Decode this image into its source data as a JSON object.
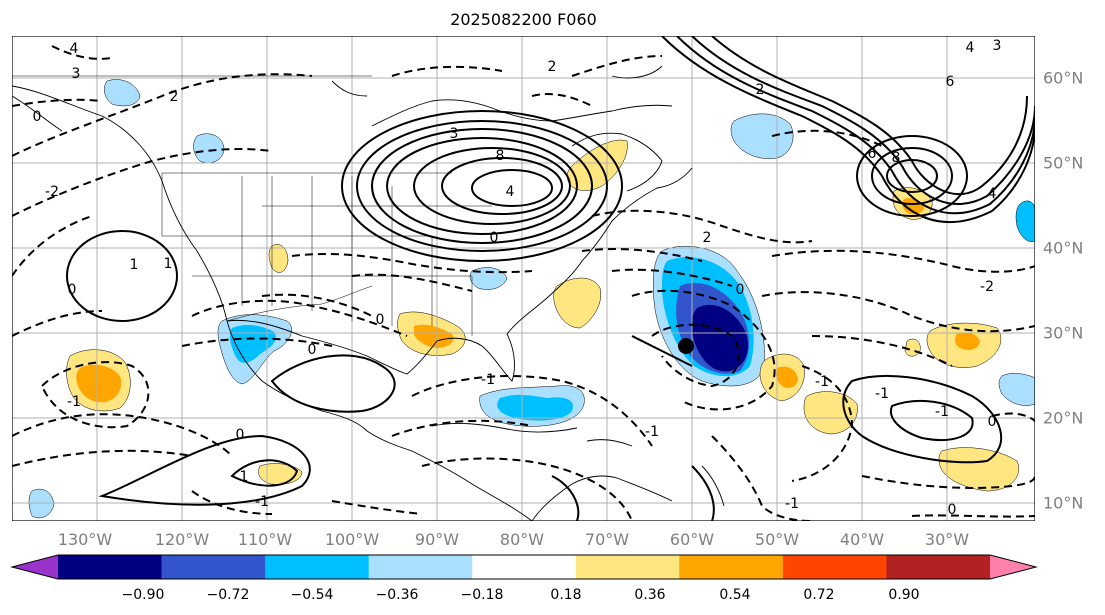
{
  "title": "2025082200 F060",
  "lon_labels": [
    "130°W",
    "120°W",
    "110°W",
    "100°W",
    "90°W",
    "80°W",
    "70°W",
    "60°W",
    "50°W",
    "40°W",
    "30°W"
  ],
  "lat_labels": [
    "60°N",
    "50°N",
    "40°N",
    "30°N",
    "20°N",
    "10°N"
  ],
  "colorbar": {
    "labels": [
      "−0.90",
      "−0.72",
      "−0.54",
      "−0.36",
      "−0.18",
      "0.18",
      "0.36",
      "0.54",
      "0.72",
      "0.90"
    ],
    "colors": [
      "#9933cc",
      "#000080",
      "#3355cc",
      "#00bfff",
      "#aadfff",
      "#ffffff",
      "#ffe680",
      "#ffa500",
      "#ff4500",
      "#b22222",
      "#ff80aa"
    ]
  },
  "contour_labels": [
    "4",
    "3",
    "2",
    "0",
    "1",
    "-1",
    "-2",
    "3",
    "2",
    "0",
    "4",
    "4",
    "2",
    "3",
    "6",
    "8",
    "8",
    "6",
    "4",
    "1",
    "0",
    "-1",
    "-1",
    "0",
    "2",
    "-1",
    "-1",
    "-2",
    "0",
    "-1",
    "-1",
    "0",
    "-1",
    "0",
    "1",
    "0",
    "0"
  ]
}
